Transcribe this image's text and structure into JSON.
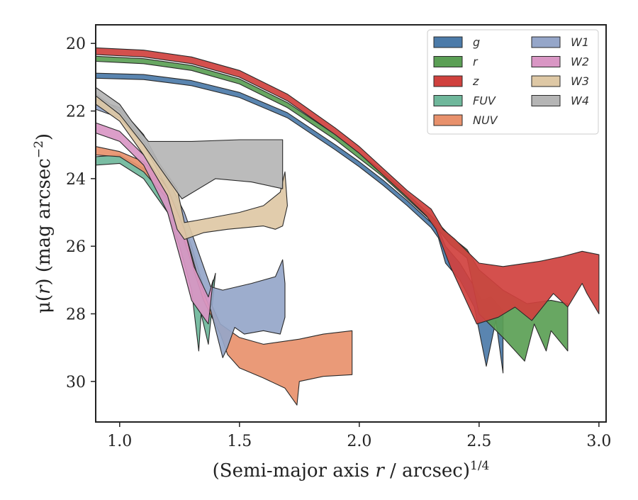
{
  "chart_data": {
    "type": "area",
    "title": "",
    "xlabel": "(Semi-major axis r / arcsec)^1/4",
    "xlabel_parts": {
      "pre": "(Semi-major axis ",
      "var": "r",
      "mid": " / arcsec)",
      "sup": "1/4"
    },
    "ylabel": "μ(r) (mag arcsec^-2)",
    "ylabel_parts": {
      "pre": "μ(",
      "var": "r",
      "mid": ") (mag arcsec",
      "sup": "−2",
      "post": ")"
    },
    "xlim": [
      0.9,
      3.03
    ],
    "ylim": [
      31.2,
      19.45
    ],
    "y_inverted": true,
    "xticks": [
      1.0,
      1.5,
      2.0,
      2.5,
      3.0
    ],
    "xtick_labels": [
      "1.0",
      "1.5",
      "2.0",
      "2.5",
      "3.0"
    ],
    "yticks": [
      20,
      22,
      24,
      26,
      28,
      30
    ],
    "ytick_labels": [
      "20",
      "22",
      "24",
      "26",
      "28",
      "30"
    ],
    "grid": false,
    "legend_position": "top-right",
    "legend_columns": 2,
    "series": [
      {
        "name": "g",
        "color": "#4c7ba9",
        "upper": [
          [
            0.9,
            20.88
          ],
          [
            1.1,
            20.92
          ],
          [
            1.3,
            21.1
          ],
          [
            1.5,
            21.45
          ],
          [
            1.7,
            22.05
          ],
          [
            1.9,
            23.0
          ],
          [
            2.0,
            23.5
          ],
          [
            2.1,
            24.05
          ],
          [
            2.2,
            24.65
          ],
          [
            2.3,
            25.3
          ],
          [
            2.33,
            25.5
          ],
          [
            2.36,
            26.0
          ],
          [
            2.42,
            26.5
          ],
          [
            2.48,
            27.2
          ],
          [
            2.51,
            27.6
          ],
          [
            2.55,
            27.5
          ],
          [
            2.6,
            27.9
          ]
        ],
        "lower": [
          [
            2.6,
            29.75
          ],
          [
            2.57,
            28.2
          ],
          [
            2.53,
            29.55
          ],
          [
            2.48,
            27.8
          ],
          [
            2.42,
            27.0
          ],
          [
            2.36,
            26.5
          ],
          [
            2.33,
            25.75
          ],
          [
            2.3,
            25.45
          ],
          [
            2.2,
            24.8
          ],
          [
            2.1,
            24.2
          ],
          [
            2.0,
            23.65
          ],
          [
            1.9,
            23.15
          ],
          [
            1.7,
            22.2
          ],
          [
            1.5,
            21.6
          ],
          [
            1.3,
            21.25
          ],
          [
            1.1,
            21.07
          ],
          [
            0.9,
            21.03
          ]
        ]
      },
      {
        "name": "r",
        "color": "#5b9f55",
        "upper": [
          [
            0.9,
            20.38
          ],
          [
            1.1,
            20.45
          ],
          [
            1.3,
            20.65
          ],
          [
            1.5,
            21.05
          ],
          [
            1.7,
            21.75
          ],
          [
            1.9,
            22.7
          ],
          [
            2.0,
            23.25
          ],
          [
            2.1,
            23.8
          ],
          [
            2.2,
            24.45
          ],
          [
            2.3,
            25.1
          ],
          [
            2.38,
            25.7
          ],
          [
            2.45,
            26.1
          ],
          [
            2.5,
            26.7
          ],
          [
            2.6,
            27.3
          ],
          [
            2.7,
            27.7
          ],
          [
            2.8,
            27.6
          ],
          [
            2.87,
            27.7
          ]
        ],
        "lower": [
          [
            2.87,
            29.1
          ],
          [
            2.8,
            28.5
          ],
          [
            2.78,
            29.1
          ],
          [
            2.73,
            28.3
          ],
          [
            2.69,
            29.4
          ],
          [
            2.6,
            28.7
          ],
          [
            2.5,
            28.0
          ],
          [
            2.45,
            26.35
          ],
          [
            2.38,
            25.95
          ],
          [
            2.3,
            25.25
          ],
          [
            2.2,
            24.6
          ],
          [
            2.1,
            23.95
          ],
          [
            2.0,
            23.4
          ],
          [
            1.9,
            22.85
          ],
          [
            1.7,
            21.9
          ],
          [
            1.5,
            21.2
          ],
          [
            1.3,
            20.8
          ],
          [
            1.1,
            20.6
          ],
          [
            0.9,
            20.53
          ]
        ]
      },
      {
        "name": "z",
        "color": "#d0413e",
        "upper": [
          [
            0.9,
            20.13
          ],
          [
            1.1,
            20.2
          ],
          [
            1.3,
            20.4
          ],
          [
            1.5,
            20.8
          ],
          [
            1.7,
            21.5
          ],
          [
            1.9,
            22.5
          ],
          [
            2.0,
            23.05
          ],
          [
            2.1,
            23.7
          ],
          [
            2.2,
            24.35
          ],
          [
            2.3,
            24.9
          ],
          [
            2.35,
            25.5
          ],
          [
            2.4,
            25.8
          ],
          [
            2.5,
            26.5
          ],
          [
            2.6,
            26.6
          ],
          [
            2.75,
            26.45
          ],
          [
            2.85,
            26.3
          ],
          [
            2.93,
            26.15
          ],
          [
            3.0,
            26.25
          ]
        ],
        "lower": [
          [
            3.0,
            28.0
          ],
          [
            2.95,
            27.4
          ],
          [
            2.93,
            27.1
          ],
          [
            2.87,
            27.8
          ],
          [
            2.81,
            27.4
          ],
          [
            2.72,
            28.2
          ],
          [
            2.65,
            27.8
          ],
          [
            2.58,
            28.1
          ],
          [
            2.49,
            28.3
          ],
          [
            2.38,
            26.6
          ],
          [
            2.32,
            25.5
          ],
          [
            2.28,
            25.1
          ],
          [
            2.2,
            24.55
          ],
          [
            2.1,
            23.9
          ],
          [
            2.0,
            23.25
          ],
          [
            1.9,
            22.7
          ],
          [
            1.7,
            21.7
          ],
          [
            1.5,
            21.0
          ],
          [
            1.3,
            20.6
          ],
          [
            1.1,
            20.4
          ],
          [
            0.9,
            20.33
          ]
        ]
      },
      {
        "name": "FUV",
        "color": "#6fb79b",
        "upper": [
          [
            0.9,
            23.35
          ],
          [
            1.0,
            23.3
          ],
          [
            1.1,
            23.7
          ],
          [
            1.2,
            24.3
          ],
          [
            1.25,
            25.0
          ],
          [
            1.3,
            26.0
          ],
          [
            1.35,
            27.3
          ],
          [
            1.37,
            27.6
          ],
          [
            1.4,
            26.8
          ]
        ],
        "lower": [
          [
            1.37,
            28.9
          ],
          [
            1.34,
            28.0
          ],
          [
            1.33,
            29.1
          ],
          [
            1.3,
            27.3
          ],
          [
            1.25,
            26.0
          ],
          [
            1.2,
            25.0
          ],
          [
            1.1,
            24.0
          ],
          [
            1.0,
            23.55
          ],
          [
            0.9,
            23.6
          ]
        ]
      },
      {
        "name": "NUV",
        "color": "#e8916c",
        "upper": [
          [
            0.9,
            23.05
          ],
          [
            1.0,
            23.2
          ],
          [
            1.1,
            23.5
          ],
          [
            1.2,
            24.2
          ],
          [
            1.25,
            25.0
          ],
          [
            1.3,
            26.0
          ],
          [
            1.35,
            27.2
          ],
          [
            1.42,
            28.3
          ],
          [
            1.5,
            28.7
          ],
          [
            1.6,
            28.9
          ],
          [
            1.75,
            28.75
          ],
          [
            1.85,
            28.6
          ],
          [
            1.97,
            28.5
          ]
        ],
        "lower": [
          [
            1.97,
            29.8
          ],
          [
            1.85,
            29.85
          ],
          [
            1.75,
            30.0
          ],
          [
            1.74,
            30.7
          ],
          [
            1.69,
            30.2
          ],
          [
            1.6,
            29.9
          ],
          [
            1.5,
            29.6
          ],
          [
            1.45,
            29.2
          ],
          [
            1.42,
            28.6
          ],
          [
            1.35,
            27.6
          ],
          [
            1.3,
            26.5
          ],
          [
            1.25,
            25.4
          ],
          [
            1.2,
            24.6
          ],
          [
            1.1,
            23.8
          ],
          [
            1.0,
            23.35
          ],
          [
            0.9,
            23.3
          ]
        ]
      },
      {
        "name": "W1",
        "color": "#95a6c9",
        "upper": [
          [
            0.9,
            21.65
          ],
          [
            1.0,
            21.9
          ],
          [
            1.1,
            22.7
          ],
          [
            1.2,
            24.0
          ],
          [
            1.27,
            25.0
          ],
          [
            1.33,
            26.2
          ],
          [
            1.38,
            27.2
          ],
          [
            1.43,
            27.3
          ],
          [
            1.55,
            27.1
          ],
          [
            1.65,
            26.9
          ],
          [
            1.68,
            26.4
          ],
          [
            1.69,
            27.1
          ]
        ],
        "lower": [
          [
            1.69,
            28.1
          ],
          [
            1.67,
            28.6
          ],
          [
            1.6,
            28.5
          ],
          [
            1.52,
            28.6
          ],
          [
            1.48,
            28.4
          ],
          [
            1.45,
            29.0
          ],
          [
            1.43,
            29.3
          ],
          [
            1.38,
            27.9
          ],
          [
            1.33,
            27.0
          ],
          [
            1.27,
            25.5
          ],
          [
            1.2,
            24.3
          ],
          [
            1.1,
            23.0
          ],
          [
            1.0,
            22.2
          ],
          [
            0.9,
            21.95
          ]
        ]
      },
      {
        "name": "W2",
        "color": "#d996c4",
        "upper": [
          [
            0.9,
            22.35
          ],
          [
            1.0,
            22.6
          ],
          [
            1.1,
            23.3
          ],
          [
            1.2,
            24.3
          ],
          [
            1.27,
            25.5
          ],
          [
            1.31,
            26.6
          ],
          [
            1.35,
            27.2
          ],
          [
            1.37,
            27.5
          ],
          [
            1.39,
            27.0
          ]
        ],
        "lower": [
          [
            1.37,
            28.3
          ],
          [
            1.34,
            28.0
          ],
          [
            1.3,
            27.6
          ],
          [
            1.27,
            26.8
          ],
          [
            1.2,
            25.0
          ],
          [
            1.1,
            23.6
          ],
          [
            1.0,
            22.9
          ],
          [
            0.9,
            22.65
          ]
        ]
      },
      {
        "name": "W3",
        "color": "#dec8a5",
        "upper": [
          [
            0.9,
            21.5
          ],
          [
            1.0,
            22.0
          ],
          [
            1.1,
            22.9
          ],
          [
            1.2,
            23.9
          ],
          [
            1.24,
            24.3
          ],
          [
            1.27,
            25.3
          ],
          [
            1.35,
            25.2
          ],
          [
            1.5,
            25.0
          ],
          [
            1.6,
            24.8
          ],
          [
            1.67,
            24.4
          ],
          [
            1.69,
            23.8
          ],
          [
            1.7,
            24.8
          ]
        ],
        "lower": [
          [
            1.7,
            24.8
          ],
          [
            1.68,
            25.4
          ],
          [
            1.65,
            25.5
          ],
          [
            1.6,
            25.4
          ],
          [
            1.45,
            25.5
          ],
          [
            1.35,
            25.6
          ],
          [
            1.27,
            25.8
          ],
          [
            1.24,
            25.5
          ],
          [
            1.2,
            24.5
          ],
          [
            1.1,
            23.3
          ],
          [
            1.0,
            22.3
          ],
          [
            0.9,
            21.8
          ]
        ]
      },
      {
        "name": "W4",
        "color": "#b5b5b5",
        "upper": [
          [
            0.9,
            21.3
          ],
          [
            1.0,
            21.8
          ],
          [
            1.05,
            22.3
          ],
          [
            1.12,
            22.9
          ],
          [
            1.3,
            22.9
          ],
          [
            1.5,
            22.85
          ],
          [
            1.68,
            22.85
          ]
        ],
        "lower": [
          [
            1.68,
            24.3
          ],
          [
            1.55,
            24.1
          ],
          [
            1.4,
            24.0
          ],
          [
            1.26,
            24.6
          ],
          [
            1.2,
            24.0
          ],
          [
            1.1,
            23.0
          ],
          [
            1.0,
            22.1
          ],
          [
            0.9,
            21.55
          ]
        ]
      }
    ]
  }
}
